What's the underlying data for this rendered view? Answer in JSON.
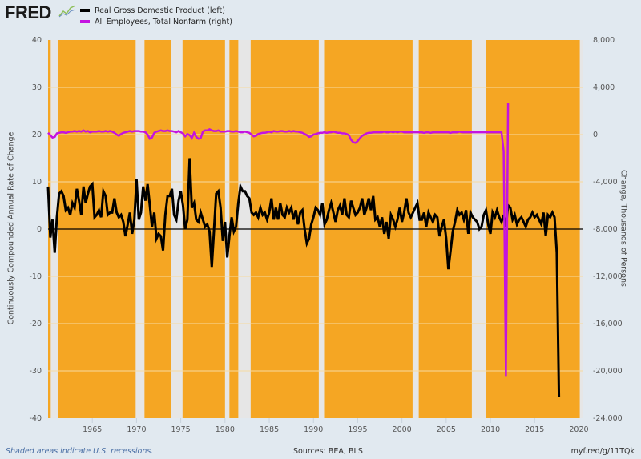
{
  "header": {
    "logo_text": "FRED",
    "legend": [
      {
        "label": "Real Gross Domestic Product (left)",
        "color": "#000000"
      },
      {
        "label": "All Employees, Total Nonfarm (right)",
        "color": "#c413e0"
      }
    ]
  },
  "footer": {
    "note": "Shaded areas indicate U.S. recessions.",
    "sources": "Sources: BEA; BLS",
    "link": "myf.red/g/11TQk"
  },
  "colors": {
    "background": "#e1e9f0",
    "expansion_fill": "#f5a623",
    "recession_fill": "#e6e6e6",
    "gdp": "#000000",
    "employment": "#c413e0",
    "zero_line": "#000000"
  },
  "chart_data": {
    "type": "line",
    "title": "",
    "xlabel": "",
    "ylabel_left": "Continuously Compounded Annual Rate of Change",
    "ylabel_right": "Change, Thousands of Persons",
    "xlim": [
      1960.0,
      2020.5
    ],
    "ylim_left": [
      -40,
      40
    ],
    "ylim_right": [
      -24000,
      8000
    ],
    "x_ticks": [
      1965,
      1970,
      1975,
      1980,
      1985,
      1990,
      1995,
      2000,
      2005,
      2010,
      2015,
      2020
    ],
    "y_ticks_left": [
      40,
      30,
      20,
      10,
      0,
      -10,
      -20,
      -30,
      -40
    ],
    "y_ticks_right": [
      "8,000",
      "4,000",
      "0",
      "-4,000",
      "-8,000",
      "-12,000",
      "-16,000",
      "-20,000",
      "-24,000"
    ],
    "y_ticks_right_values": [
      8000,
      4000,
      0,
      -4000,
      -8000,
      -12000,
      -16000,
      -20000,
      -24000
    ],
    "grid": true,
    "legend_position": "top-left",
    "recessions": [
      [
        1960.3,
        1961.1
      ],
      [
        1969.9,
        1970.9
      ],
      [
        1973.9,
        1975.2
      ],
      [
        1980.0,
        1980.5
      ],
      [
        1981.5,
        1982.9
      ],
      [
        1990.6,
        1991.2
      ],
      [
        2001.2,
        2001.9
      ],
      [
        2007.9,
        2009.5
      ],
      [
        2020.1,
        2020.5
      ]
    ],
    "series": [
      {
        "name": "Real Gross Domestic Product (left)",
        "axis": "left",
        "x_start": 1960.0,
        "x_step": 0.25,
        "values": [
          9.0,
          -1.8,
          2.0,
          -5.0,
          2.5,
          7.5,
          8.0,
          7.0,
          4.0,
          4.5,
          3.0,
          5.5,
          4.5,
          8.5,
          6.0,
          3.0,
          9.0,
          5.5,
          7.5,
          9.0,
          9.5,
          2.5,
          3.0,
          4.0,
          2.5,
          8.0,
          7.0,
          3.0,
          3.5,
          3.5,
          6.5,
          3.5,
          2.5,
          3.0,
          1.5,
          -1.5,
          1.0,
          3.5,
          -1.0,
          2.0,
          10.5,
          2.0,
          3.5,
          9.0,
          6.0,
          9.5,
          5.0,
          0.5,
          3.5,
          -2.0,
          -1.0,
          -1.5,
          -4.5,
          3.0,
          7.0,
          7.0,
          8.5,
          3.0,
          2.0,
          6.0,
          8.0,
          5.0,
          0.0,
          2.0,
          15.0,
          4.5,
          5.5,
          2.0,
          1.5,
          3.5,
          2.0,
          0.5,
          1.0,
          -0.5,
          -8.0,
          -0.5,
          7.5,
          8.0,
          4.5,
          -2.5,
          1.5,
          -6.0,
          -1.5,
          2.5,
          -0.5,
          0.5,
          5.5,
          9.0,
          8.0,
          8.0,
          7.0,
          6.5,
          3.5,
          3.0,
          3.5,
          2.5,
          4.5,
          3.0,
          3.5,
          2.0,
          3.5,
          6.5,
          2.0,
          4.5,
          2.0,
          5.5,
          3.0,
          2.5,
          4.5,
          3.5,
          4.5,
          2.0,
          4.0,
          1.0,
          3.5,
          4.0,
          0.0,
          -3.0,
          -2.0,
          1.0,
          2.5,
          4.5,
          4.0,
          3.0,
          5.5,
          1.0,
          2.0,
          4.0,
          5.5,
          3.5,
          1.5,
          4.0,
          5.0,
          3.0,
          6.5,
          3.0,
          2.5,
          6.0,
          4.5,
          3.0,
          3.5,
          4.5,
          6.5,
          3.0,
          4.5,
          6.5,
          4.0,
          7.0,
          2.0,
          2.5,
          0.5,
          2.5,
          -1.0,
          1.5,
          -2.0,
          3.0,
          2.0,
          0.5,
          2.0,
          4.5,
          1.5,
          3.5,
          6.5,
          3.5,
          2.5,
          3.5,
          4.5,
          5.5,
          2.0,
          2.0,
          3.5,
          0.5,
          3.5,
          2.5,
          1.5,
          3.0,
          2.5,
          -1.5,
          0.5,
          2.0,
          -2.0,
          -8.5,
          -4.5,
          -0.5,
          1.5,
          4.0,
          3.0,
          3.5,
          2.0,
          4.0,
          -1.0,
          3.5,
          2.5,
          2.0,
          1.5,
          0.0,
          0.5,
          3.0,
          4.0,
          1.0,
          -1.0,
          3.5,
          2.5,
          4.0,
          2.5,
          1.5,
          3.0,
          0.5,
          5.0,
          4.5,
          2.0,
          3.0,
          1.0,
          2.0,
          2.5,
          1.5,
          0.5,
          2.0,
          2.5,
          3.5,
          2.5,
          3.0,
          2.0,
          1.0,
          3.5,
          -1.5,
          3.0,
          2.5,
          3.5,
          2.5,
          -5.0,
          -35.5
        ]
      },
      {
        "name": "All Employees, Total Nonfarm (right)",
        "axis": "right",
        "x_start": 1960.0,
        "x_step": 0.25,
        "values": [
          150,
          -50,
          -250,
          -200,
          100,
          150,
          200,
          200,
          150,
          200,
          250,
          250,
          300,
          250,
          300,
          250,
          350,
          250,
          300,
          200,
          250,
          250,
          250,
          300,
          250,
          250,
          300,
          250,
          300,
          250,
          150,
          0,
          -100,
          50,
          150,
          200,
          250,
          300,
          250,
          300,
          300,
          300,
          250,
          250,
          200,
          0,
          -350,
          -250,
          150,
          250,
          300,
          350,
          300,
          300,
          350,
          300,
          300,
          250,
          200,
          300,
          200,
          100,
          -150,
          50,
          -50,
          -300,
          150,
          -200,
          -350,
          -300,
          250,
          350,
          350,
          450,
          350,
          300,
          300,
          350,
          250,
          250,
          250,
          300,
          300,
          250,
          250,
          300,
          250,
          200,
          200,
          250,
          200,
          150,
          0,
          -150,
          -100,
          50,
          100,
          150,
          150,
          200,
          250,
          200,
          300,
          250,
          250,
          300,
          300,
          250,
          250,
          300,
          250,
          300,
          250,
          250,
          200,
          150,
          50,
          -50,
          -200,
          -150,
          0,
          50,
          100,
          150,
          150,
          200,
          150,
          200,
          200,
          250,
          200,
          150,
          150,
          100,
          100,
          50,
          -50,
          -450,
          -650,
          -700,
          -550,
          -300,
          -100,
          0,
          100,
          150,
          150,
          200,
          200,
          200,
          200,
          200,
          250,
          200,
          200,
          250,
          200,
          250,
          200,
          250,
          250,
          200,
          200,
          200,
          200,
          200,
          200,
          200,
          200,
          200,
          150,
          200,
          200,
          150,
          200,
          200,
          200,
          200,
          200,
          200,
          200,
          200,
          150,
          200,
          200,
          200,
          250,
          200,
          200,
          200,
          200,
          200,
          200,
          200,
          200,
          200,
          200,
          200,
          200,
          200,
          200,
          200,
          200,
          200,
          200,
          200,
          -1400,
          -20500,
          2700
        ]
      }
    ]
  }
}
